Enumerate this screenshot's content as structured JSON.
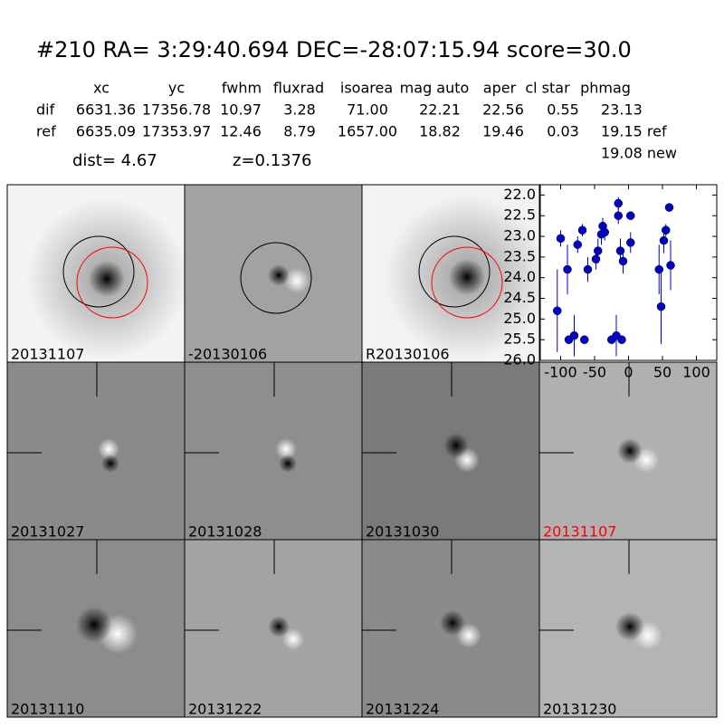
{
  "header": {
    "title": "#210   RA= 3:29:40.694 DEC=-28:07:15.94       score=30.0"
  },
  "table": {
    "columns": [
      "xc",
      "yc",
      "fwhm",
      "fluxrad",
      "isoarea",
      "mag auto",
      "aper",
      "cl star",
      "phmag"
    ],
    "rows": [
      [
        "dif",
        "6631.36",
        "17356.78",
        "10.97",
        "3.28",
        "71.00",
        "22.21",
        "22.56",
        "0.55",
        "23.13"
      ],
      [
        "ref",
        "6635.09",
        "17353.97",
        "12.46",
        "8.79",
        "1657.00",
        "18.82",
        "19.46",
        "0.03",
        "19.15 ref"
      ]
    ],
    "extra": "19.08 new",
    "dist": "dist=  4.67",
    "z": "z=0.1376"
  },
  "panels": [
    {
      "label": "20131107",
      "color": "#000000"
    },
    {
      "label": "-20130106",
      "color": "#000000"
    },
    {
      "label": "R20130106",
      "color": "#000000"
    },
    {
      "label": "20131027",
      "color": "#000000"
    },
    {
      "label": "20131028",
      "color": "#000000"
    },
    {
      "label": "20131030",
      "color": "#000000"
    },
    {
      "label": "20131107",
      "color": "#ff0000"
    },
    {
      "label": "20131110",
      "color": "#000000"
    },
    {
      "label": "20131222",
      "color": "#000000"
    },
    {
      "label": "20131224",
      "color": "#000000"
    },
    {
      "label": "20131230",
      "color": "#000000"
    }
  ],
  "chart_data": {
    "type": "scatter",
    "color": "#0000cc",
    "x": [
      -100,
      -105,
      -90,
      -88,
      -80,
      -75,
      -68,
      -65,
      -60,
      -48,
      -45,
      -40,
      -38,
      -35,
      -25,
      -18,
      -15,
      -15,
      -12,
      -10,
      -8,
      3,
      3,
      45,
      48,
      52,
      55,
      60,
      62
    ],
    "values": [
      23.05,
      24.8,
      23.8,
      25.5,
      25.4,
      23.2,
      22.85,
      25.5,
      23.8,
      23.55,
      23.35,
      22.95,
      22.75,
      22.9,
      25.5,
      25.4,
      22.5,
      22.2,
      23.35,
      25.5,
      23.6,
      23.15,
      22.5,
      23.8,
      24.7,
      23.1,
      22.85,
      22.3,
      23.7
    ],
    "errors": [
      0.2,
      1.0,
      0.6,
      0.1,
      0.5,
      0.2,
      0.15,
      0.1,
      0.3,
      0.25,
      0.3,
      0.25,
      0.2,
      0.2,
      0.1,
      0.5,
      0.2,
      0.15,
      0.3,
      0.1,
      0.3,
      0.25,
      0.1,
      0.6,
      0.9,
      0.3,
      0.15,
      0.1,
      0.6
    ],
    "xlim": [
      -130,
      130
    ],
    "xticks": [
      -100,
      -50,
      0,
      50,
      100
    ],
    "ylim": [
      21.75,
      26
    ],
    "y_inverted": true,
    "yticks": [
      {
        "value": 22,
        "label": "22.0"
      },
      {
        "value": 22.5,
        "label": "22.5"
      },
      {
        "value": 23,
        "label": "23.0"
      },
      {
        "value": 23.5,
        "label": "23.5"
      },
      {
        "value": 24,
        "label": "24.0"
      },
      {
        "value": 24.5,
        "label": "24.5"
      },
      {
        "value": 25,
        "label": "25.0"
      },
      {
        "value": 25.5,
        "label": "25.5"
      },
      {
        "value": 26,
        "label": "26.0"
      }
    ]
  }
}
